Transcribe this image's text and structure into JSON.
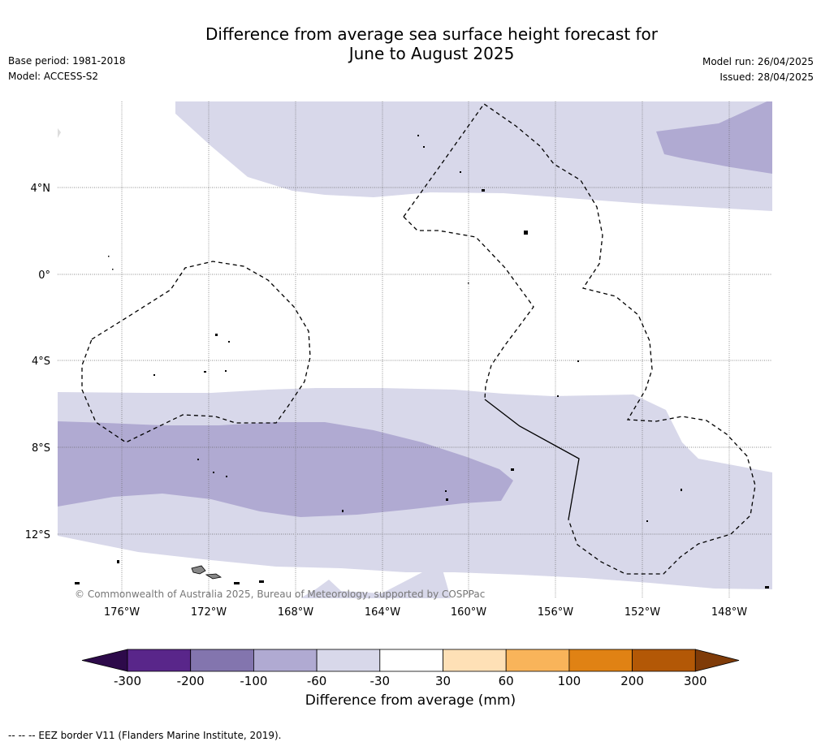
{
  "header": {
    "title_line1": "Difference from average sea surface height forecast for",
    "title_line2": "June to August 2025",
    "base_period": "Base period: 1981-2018",
    "model": "Model: ACCESS-S2",
    "model_run": "Model run: 26/04/2025",
    "issued": "Issued: 28/04/2025"
  },
  "map": {
    "lat_labels": [
      "4°N",
      "0°",
      "4°S",
      "8°S",
      "12°S"
    ],
    "lon_labels": [
      "176°W",
      "172°W",
      "168°W",
      "164°W",
      "160°W",
      "156°W",
      "152°W",
      "148°W"
    ],
    "copyright": "© Commonwealth of Australia 2025, Bureau of Meteorology, supported by COSPPac"
  },
  "colorbar": {
    "tick_labels": [
      "-300",
      "-200",
      "-100",
      "-60",
      "-30",
      "30",
      "60",
      "100",
      "200",
      "300"
    ],
    "colors": [
      "#2d0a4a",
      "#59268a",
      "#8375ae",
      "#b0aad2",
      "#d8d8ea",
      "#ffffff",
      "#fee0b6",
      "#f9b45a",
      "#e08214",
      "#b35806",
      "#7f3b08"
    ],
    "label": "Difference from average (mm)"
  },
  "footnote": "--  --  -- EEZ border V11 (Flanders Marine Institute, 2019)."
}
